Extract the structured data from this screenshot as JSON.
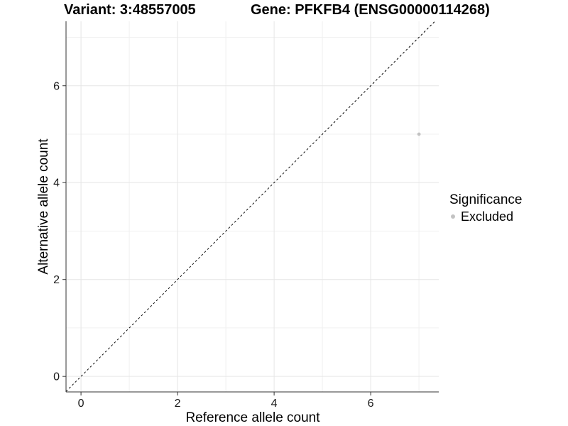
{
  "chart_data": {
    "type": "scatter",
    "title_left": "Variant: 3:48557005",
    "title_right": "Gene: PFKFB4 (ENSG00000114268)",
    "xlabel": "Reference allele count",
    "ylabel": "Alternative allele count",
    "xlim": [
      -0.31,
      7.41
    ],
    "ylim": [
      -0.32,
      7.33
    ],
    "x_ticks": [
      0,
      2,
      4,
      6
    ],
    "y_ticks": [
      0,
      2,
      4,
      6
    ],
    "x_minor_ticks": [
      1,
      3,
      5,
      7
    ],
    "y_minor_ticks": [
      1,
      3,
      5,
      7
    ],
    "grid": true,
    "identity_line": {
      "slope": 1,
      "intercept": 0,
      "style": "dashed"
    },
    "series": [
      {
        "name": "Excluded",
        "color": "#c2c2c2",
        "points": [
          {
            "x": 7,
            "y": 5
          }
        ]
      }
    ],
    "legend": {
      "position": "right",
      "title": "Significance",
      "items": [
        {
          "label": "Excluded",
          "color": "#c2c2c2"
        }
      ]
    },
    "style": {
      "background": "#ffffff",
      "grid_major_color": "#e6e6e6",
      "grid_minor_color": "#f0f0f0",
      "axis_line_color": "#333333",
      "tick_color": "#333333",
      "tick_label_color": "#1a1a1a",
      "identity_line_color": "#000000"
    }
  }
}
